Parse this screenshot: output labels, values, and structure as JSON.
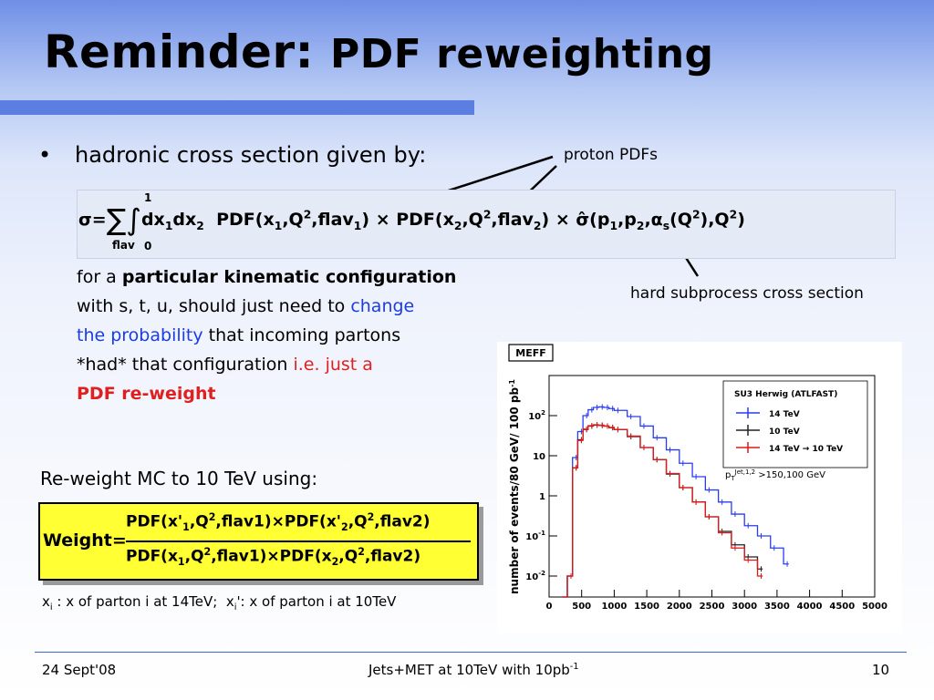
{
  "slide": {
    "title_part1": "Reminder:",
    "title_part2": "PDF reweighting",
    "bullet": "hadronic cross section given by:",
    "annotation_proton": "proton PDFs",
    "annotation_hard": "hard subprocess cross section",
    "body": {
      "p1": "for a ",
      "p1_bold": "particular kinematic configuration",
      "p2": "with s, t, u, should just need to ",
      "p2_blue": "change",
      "p3_blue": "the probability",
      "p3": " that incoming partons",
      "p4": "*had* that configuration ",
      "p4_red": "i.e. just a",
      "p5_red": "PDF re-weight"
    },
    "reweight_line": "Re-weight MC to 10 TeV using:",
    "weight_label": "Weight=",
    "footnote": "x",
    "footer_date": "24 Sept'08",
    "footer_center": "Jets+MET at 10TeV with 10pb",
    "footer_center_sup": "-1",
    "page_number": "10"
  },
  "chart_data": {
    "type": "line",
    "title": "MEFF",
    "xlabel": "",
    "ylabel": "number of events/80 GeV/ 100 pb",
    "ylabel_sup": "-1",
    "xlim": [
      0,
      5000
    ],
    "ylim_log": [
      0.003,
      1000
    ],
    "y_log_scale": true,
    "xticks": [
      "0",
      "500",
      "1000",
      "1500",
      "2000",
      "2500",
      "3000",
      "3500",
      "4000",
      "4500",
      "5000"
    ],
    "yticks": [
      "10",
      "10",
      "1",
      "10",
      "10"
    ],
    "yticks_exp": [
      "2",
      "",
      "",
      "-1",
      "-2"
    ],
    "legend_title": "SU3 Herwig (ATLFAST)",
    "legend_position": "top-right",
    "annotation": "p",
    "annotation_sub": "T",
    "annotation_sup": "Jet,1,2",
    "annotation_rest": " >150,100 GeV",
    "colors": {
      "14tev": "#2a3cf0",
      "10tev": "#222222",
      "reweight": "#e01818"
    },
    "series": [
      {
        "name": "14 TeV",
        "x": [
          200,
          280,
          360,
          440,
          520,
          600,
          680,
          760,
          840,
          920,
          1000,
          1200,
          1400,
          1600,
          1800,
          2000,
          2200,
          2400,
          2600,
          2800,
          3000,
          3200,
          3400,
          3600
        ],
        "y": [
          0,
          0.01,
          9,
          40,
          100,
          140,
          160,
          165,
          160,
          150,
          135,
          95,
          55,
          28,
          14,
          6.5,
          3,
          1.4,
          0.7,
          0.35,
          0.18,
          0.1,
          0.05,
          0.02
        ]
      },
      {
        "name": "10 TeV",
        "x": [
          200,
          280,
          360,
          440,
          520,
          600,
          680,
          760,
          840,
          920,
          1000,
          1200,
          1400,
          1600,
          1800,
          2000,
          2200,
          2400,
          2600,
          2800,
          3000,
          3200
        ],
        "y": [
          0,
          0.01,
          5,
          25,
          45,
          55,
          58,
          57,
          55,
          50,
          45,
          30,
          16,
          8,
          3.5,
          1.6,
          0.7,
          0.3,
          0.13,
          0.06,
          0.03,
          0.015
        ]
      },
      {
        "name": "14 TeV → 10 TeV",
        "x": [
          200,
          280,
          360,
          440,
          520,
          600,
          680,
          760,
          840,
          920,
          1000,
          1200,
          1400,
          1600,
          1800,
          2000,
          2200,
          2400,
          2600,
          2800,
          3000,
          3200
        ],
        "y": [
          0,
          0.01,
          5,
          24,
          46,
          56,
          59,
          58,
          55,
          51,
          45,
          31,
          16,
          8,
          3.6,
          1.6,
          0.7,
          0.3,
          0.12,
          0.05,
          0.025,
          0.01
        ]
      }
    ]
  }
}
